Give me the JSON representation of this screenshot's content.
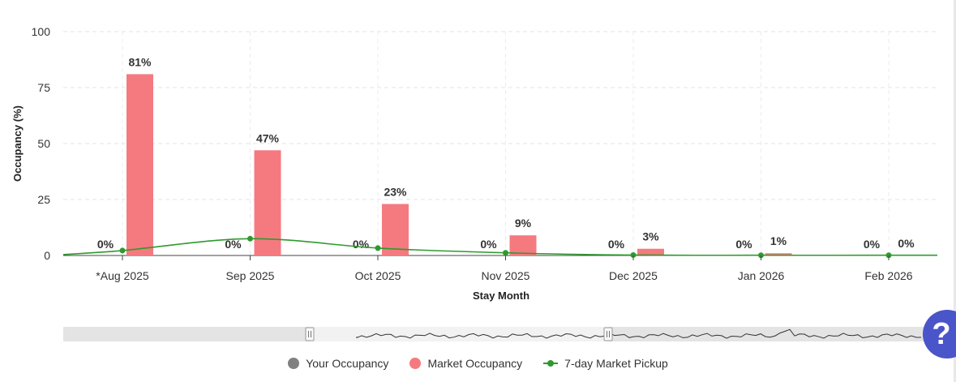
{
  "colors": {
    "your_occupancy": "#808080",
    "market_occupancy": "#f47a80",
    "pickup": "#2e9a2e",
    "help_button": "#4a55c9"
  },
  "chart_data": {
    "type": "bar",
    "xlabel": "Stay Month",
    "ylabel": "Occupancy (%)",
    "ylim": [
      0,
      100
    ],
    "yticks": [
      0,
      25,
      50,
      75,
      100
    ],
    "grid": true,
    "legend_position": "bottom-center",
    "categories": [
      "*Aug 2025",
      "Sep 2025",
      "Oct 2025",
      "Nov 2025",
      "Dec 2025",
      "Jan 2026",
      "Feb 2026"
    ],
    "series": [
      {
        "name": "Your Occupancy",
        "type": "bar",
        "values": [
          0,
          0,
          0,
          0,
          0,
          0,
          0
        ],
        "labels": [
          "0%",
          "0%",
          "0%",
          "0%",
          "0%",
          "0%",
          "0%"
        ]
      },
      {
        "name": "Market Occupancy",
        "type": "bar",
        "values": [
          81,
          47,
          23,
          9,
          3,
          1,
          0
        ],
        "labels": [
          "81%",
          "47%",
          "23%",
          "9%",
          "3%",
          "1%",
          "0%"
        ]
      },
      {
        "name": "7-day Market Pickup",
        "type": "line",
        "values": [
          2.2,
          7.5,
          3.3,
          1.2,
          0.2,
          0.1,
          0.1
        ]
      }
    ]
  },
  "legend": {
    "your_occupancy": "Your Occupancy",
    "market_occupancy": "Market Occupancy",
    "pickup": "7-day Market Pickup"
  },
  "help": {
    "icon": "question-mark-icon",
    "label": "?"
  }
}
